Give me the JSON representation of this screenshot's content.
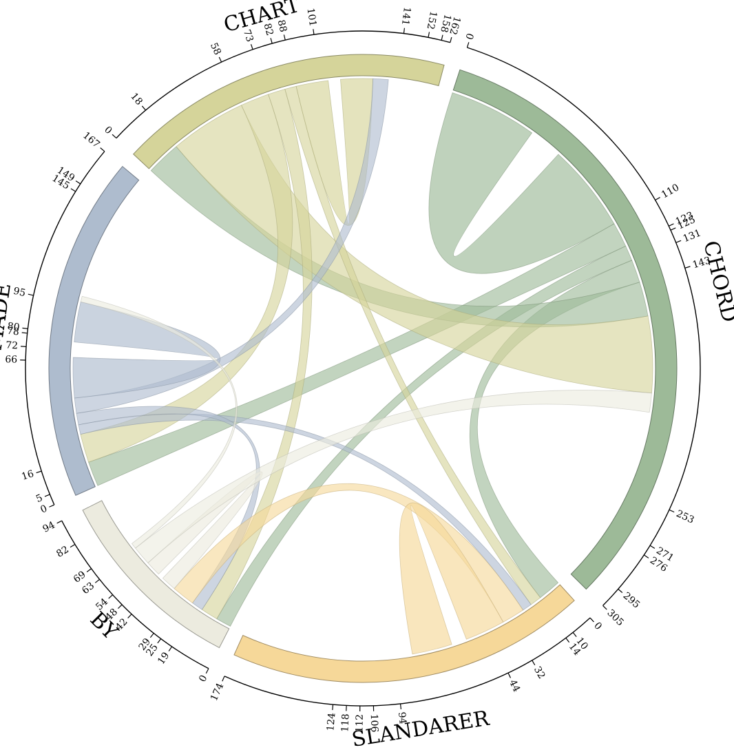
{
  "chart_data": {
    "type": "chord",
    "groups": [
      {
        "name": "CHORD",
        "total": 305,
        "color": "#9dba98"
      },
      {
        "name": "SLANDARER",
        "total": 174,
        "color": "#f6d899"
      },
      {
        "name": "BY",
        "total": 94,
        "color": "#ecebdf"
      },
      {
        "name": "MADE",
        "total": 167,
        "color": "#aebcce"
      },
      {
        "name": "CHART",
        "total": 162,
        "color": "#d5d49a"
      }
    ],
    "flows": [
      {
        "source": "CHORD",
        "target": "CHORD",
        "value": 110
      },
      {
        "source": "CHORD",
        "target": "MADE",
        "value": 13
      },
      {
        "source": "CHORD",
        "target": "BY",
        "value": 8
      },
      {
        "source": "CHORD",
        "target": "SLANDARER",
        "value": 12
      },
      {
        "source": "CHORD",
        "target": "CHART",
        "value": 18
      },
      {
        "source": "CHART",
        "target": "CHORD",
        "value": 40
      },
      {
        "source": "CHART",
        "target": "MADE",
        "value": 15
      },
      {
        "source": "CHART",
        "target": "BY",
        "value": 9
      },
      {
        "source": "CHART",
        "target": "SLANDARER",
        "value": 6
      },
      {
        "source": "CHART",
        "target": "CHART",
        "value": 40
      },
      {
        "source": "MADE",
        "target": "SLANDARER",
        "value": 5
      },
      {
        "source": "MADE",
        "target": "BY",
        "value": 6
      },
      {
        "source": "MADE",
        "target": "CHART",
        "value": 8
      },
      {
        "source": "MADE",
        "target": "MADE",
        "value": 50
      },
      {
        "source": "SLANDARER",
        "target": "BY",
        "value": 12
      },
      {
        "source": "SLANDARER",
        "target": "SLANDARER",
        "value": 50
      },
      {
        "source": "BY",
        "target": "BY",
        "value": 19
      },
      {
        "source": "BY",
        "target": "CHORD",
        "value": 10
      },
      {
        "source": "BY",
        "target": "MADE",
        "value": 3
      }
    ],
    "ticks": {
      "CHORD": [
        0,
        110,
        123,
        125,
        131,
        143,
        253,
        271,
        276,
        295,
        305
      ],
      "SLANDARER": [
        0,
        10,
        14,
        32,
        44,
        94,
        106,
        112,
        118,
        124,
        174
      ],
      "BY": [
        0,
        19,
        25,
        29,
        42,
        48,
        54,
        63,
        69,
        82,
        94
      ],
      "MADE": [
        0,
        5,
        16,
        66,
        72,
        78,
        80,
        95,
        145,
        149,
        167
      ],
      "CHART": [
        0,
        18,
        58,
        73,
        82,
        88,
        101,
        141,
        152,
        158,
        162
      ]
    }
  }
}
